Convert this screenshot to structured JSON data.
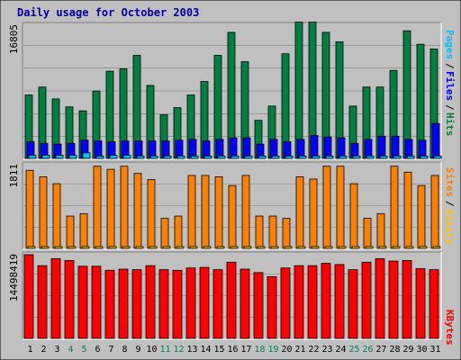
{
  "chart_data": [
    {
      "type": "bar",
      "title": "Daily usage for October 2003",
      "panel": "hits-files-pages",
      "categories": [
        "1",
        "2",
        "3",
        "4",
        "5",
        "6",
        "7",
        "8",
        "9",
        "10",
        "11",
        "12",
        "13",
        "14",
        "15",
        "16",
        "17",
        "18",
        "19",
        "20",
        "21",
        "22",
        "23",
        "24",
        "25",
        "26",
        "27",
        "28",
        "29",
        "30",
        "31"
      ],
      "weekend_days": [
        "4",
        "5",
        "11",
        "12",
        "18",
        "19",
        "25",
        "26"
      ],
      "ylim": [
        0,
        16805
      ],
      "y_tick_label": "16805",
      "legend": [
        "Pages",
        "/",
        "Files",
        "/",
        "Hits"
      ],
      "series": [
        {
          "name": "Hits",
          "color": "#008040",
          "values": [
            8000,
            9000,
            7500,
            6500,
            6000,
            8500,
            11000,
            11300,
            13000,
            9200,
            5500,
            6400,
            8000,
            9700,
            13000,
            15900,
            12200,
            4800,
            6600,
            13200,
            17200,
            17200,
            15900,
            14700,
            6600,
            9000,
            9000,
            11100,
            16100,
            14400,
            13800
          ]
        },
        {
          "name": "Files",
          "color": "#0000FF",
          "values": [
            2100,
            1900,
            1800,
            1900,
            2300,
            2200,
            2100,
            2200,
            2200,
            2200,
            2200,
            2300,
            2400,
            2200,
            2400,
            2600,
            2600,
            1800,
            2400,
            2100,
            2400,
            2900,
            2700,
            2600,
            1900,
            2400,
            2800,
            2800,
            2400,
            2300,
            4400
          ]
        },
        {
          "name": "Pages",
          "color": "#00C0FF",
          "values": [
            400,
            400,
            400,
            400,
            700,
            300,
            400,
            400,
            300,
            300,
            300,
            300,
            300,
            300,
            300,
            300,
            300,
            300,
            300,
            300,
            300,
            300,
            300,
            300,
            300,
            300,
            300,
            300,
            300,
            300,
            300
          ]
        }
      ]
    },
    {
      "type": "bar",
      "panel": "visits-sites",
      "categories": [
        "1",
        "2",
        "3",
        "4",
        "5",
        "6",
        "7",
        "8",
        "9",
        "10",
        "11",
        "12",
        "13",
        "14",
        "15",
        "16",
        "17",
        "18",
        "19",
        "20",
        "21",
        "22",
        "23",
        "24",
        "25",
        "26",
        "27",
        "28",
        "29",
        "30",
        "31"
      ],
      "ylim": [
        0,
        1811
      ],
      "y_tick_label": "1811",
      "legend": [
        "Sites",
        "/",
        "Visits"
      ],
      "series": [
        {
          "name": "Visits",
          "color": "#FF8000",
          "values": [
            1689,
            1550,
            1400,
            700,
            750,
            1778,
            1711,
            1778,
            1622,
            1489,
            650,
            700,
            1578,
            1578,
            1550,
            1360,
            1578,
            700,
            700,
            650,
            1550,
            1500,
            1778,
            1778,
            1400,
            650,
            750,
            1778,
            1650,
            1360,
            1578
          ]
        },
        {
          "name": "Sites",
          "color": "#FFC000",
          "values": [
            40,
            40,
            40,
            40,
            40,
            40,
            40,
            40,
            40,
            40,
            40,
            40,
            40,
            40,
            40,
            40,
            40,
            40,
            40,
            40,
            40,
            40,
            40,
            40,
            40,
            40,
            40,
            40,
            40,
            40,
            40
          ]
        }
      ]
    },
    {
      "type": "bar",
      "panel": "kbytes",
      "categories": [
        "1",
        "2",
        "3",
        "4",
        "5",
        "6",
        "7",
        "8",
        "9",
        "10",
        "11",
        "12",
        "13",
        "14",
        "15",
        "16",
        "17",
        "18",
        "19",
        "20",
        "21",
        "22",
        "23",
        "24",
        "25",
        "26",
        "27",
        "28",
        "29",
        "30",
        "31"
      ],
      "ylim": [
        0,
        14498419
      ],
      "y_tick_label": "14498419",
      "legend": [
        "KBytes"
      ],
      "series": [
        {
          "name": "KBytes",
          "color": "#FF0000",
          "values": [
            14500000,
            12600000,
            13800000,
            13500000,
            12500000,
            12500000,
            11800000,
            12000000,
            11900000,
            12600000,
            11900000,
            11800000,
            12200000,
            12300000,
            11900000,
            13200000,
            12000000,
            11400000,
            10700000,
            12200000,
            12600000,
            12600000,
            13000000,
            12800000,
            11900000,
            13200000,
            13800000,
            13400000,
            13500000,
            12100000,
            11900000
          ]
        }
      ]
    }
  ]
}
